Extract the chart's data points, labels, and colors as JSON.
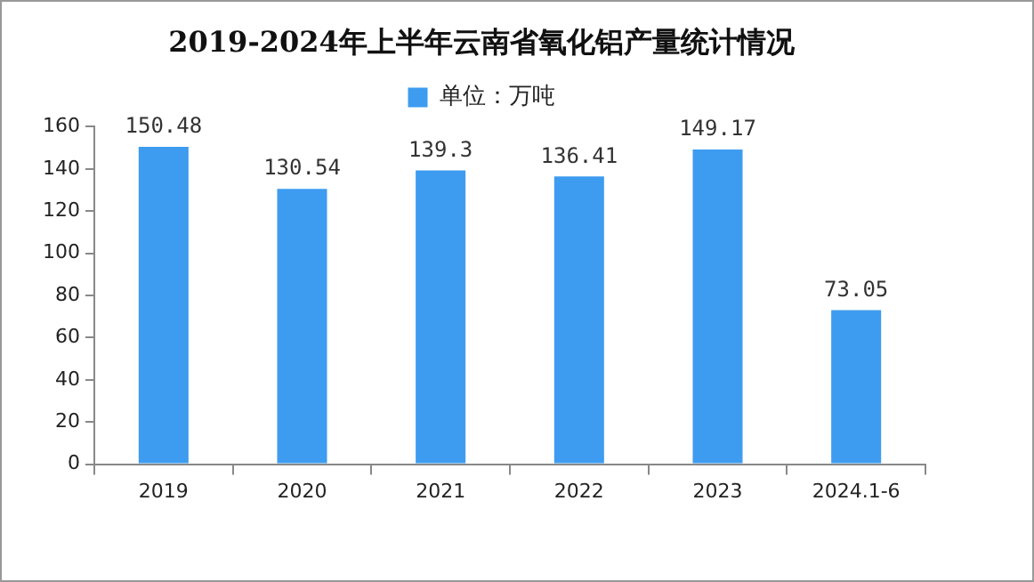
{
  "chart_data": {
    "type": "bar",
    "title": "2019-2024年上半年云南省氧化铝产量统计情况",
    "categories": [
      "2019",
      "2020",
      "2021",
      "2022",
      "2023",
      "2024.1-6"
    ],
    "series": [
      {
        "name": "单位：万吨",
        "color": "#3d9cf0",
        "values": [
          150.48,
          130.54,
          139.3,
          136.41,
          149.17,
          73.05
        ]
      }
    ],
    "ylim": [
      0,
      160
    ],
    "yticks": [
      0,
      20,
      40,
      60,
      80,
      100,
      120,
      140,
      160
    ],
    "grid": false,
    "legend": "top",
    "data_labels": true
  }
}
